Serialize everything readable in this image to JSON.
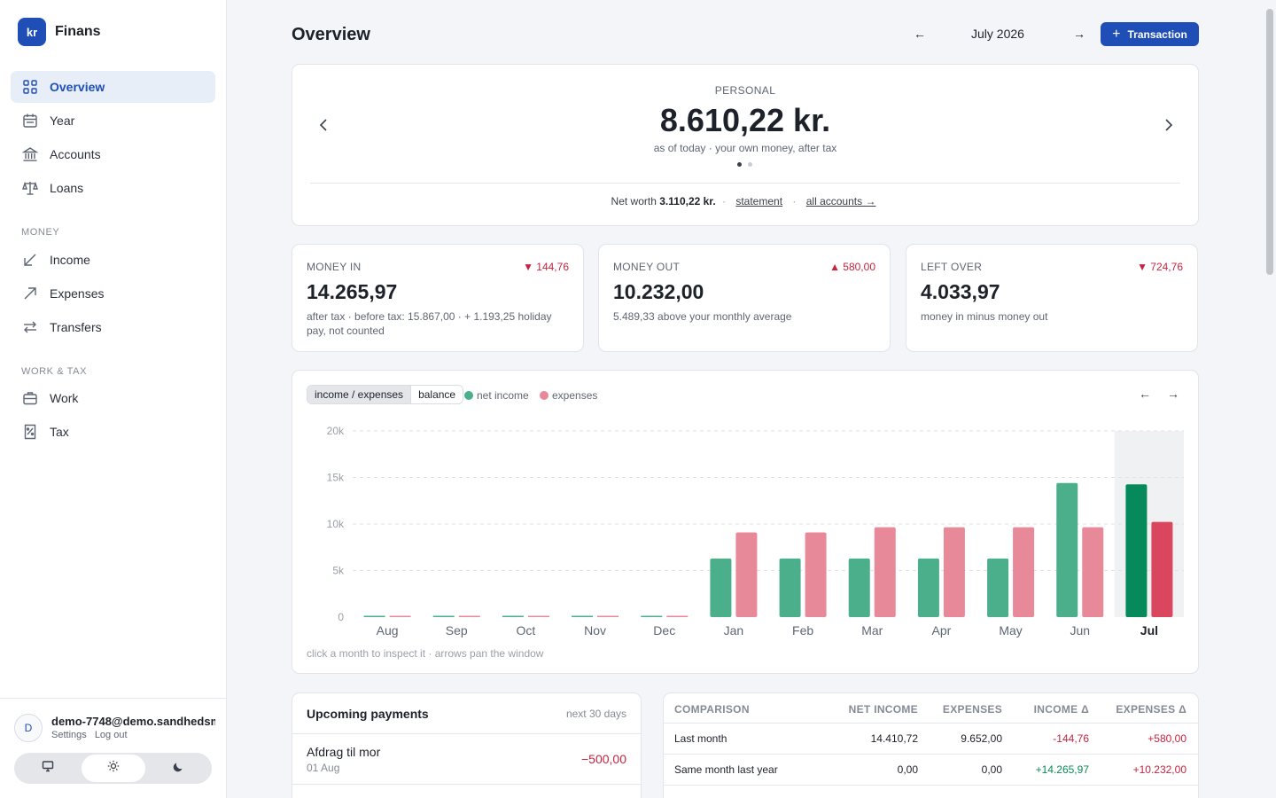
{
  "app": {
    "logo": "kr",
    "name": "Finans"
  },
  "sidebar": {
    "nav": [
      {
        "label": "Overview",
        "icon": "grid-icon"
      },
      {
        "label": "Year",
        "icon": "calendar-icon"
      },
      {
        "label": "Accounts",
        "icon": "bank-icon"
      },
      {
        "label": "Loans",
        "icon": "scale-icon"
      }
    ],
    "section_money": "MONEY",
    "money": [
      {
        "label": "Income",
        "icon": "arrow-down-left-icon"
      },
      {
        "label": "Expenses",
        "icon": "arrow-up-right-icon"
      },
      {
        "label": "Transfers",
        "icon": "swap-icon"
      }
    ],
    "section_work": "WORK & TAX",
    "work": [
      {
        "label": "Work",
        "icon": "briefcase-icon"
      },
      {
        "label": "Tax",
        "icon": "receipt-icon"
      }
    ],
    "user": {
      "initial": "D",
      "email": "demo-7748@demo.sandhedsm...",
      "settings": "Settings",
      "logout": "Log out"
    },
    "theme": {
      "selected": "light"
    }
  },
  "header": {
    "title": "Overview",
    "prev": "←",
    "month": "July 2026",
    "next": "→",
    "add_label": "Transaction"
  },
  "hero": {
    "label": "PERSONAL",
    "value": "8.610,22 kr.",
    "sub": "as of today · your own money, after tax",
    "net_worth_label": "Net worth",
    "net_worth": "3.110,22 kr.",
    "sep": "·",
    "statement": "statement",
    "all_accounts": "all accounts →"
  },
  "stats": [
    {
      "label": "MONEY IN",
      "delta": "▼ 144,76",
      "value": "14.265,97",
      "note": "after tax · before tax: 15.867,00 · + 1.193,25 holiday pay, not counted"
    },
    {
      "label": "MONEY OUT",
      "delta": "▲ 580,00",
      "value": "10.232,00",
      "note": "5.489,33 above your monthly average"
    },
    {
      "label": "LEFT OVER",
      "delta": "▼ 724,76",
      "value": "4.033,97",
      "note": "money in minus money out"
    }
  ],
  "chart_panel": {
    "tabs": [
      "income / expenses",
      "balance"
    ],
    "hint": "click a month to inspect it · arrows pan the window",
    "prev": "←",
    "next": "→"
  },
  "chart_data": {
    "type": "bar",
    "categories": [
      "Aug",
      "Sep",
      "Oct",
      "Nov",
      "Dec",
      "Jan",
      "Feb",
      "Mar",
      "Apr",
      "May",
      "Jun",
      "Jul"
    ],
    "series": [
      {
        "name": "net income",
        "color": "#4caf8c",
        "values": [
          0,
          0,
          0,
          0,
          0,
          6300,
          6300,
          6300,
          6300,
          6300,
          14400,
          14266
        ]
      },
      {
        "name": "expenses",
        "color": "#e8899a",
        "values": [
          0,
          0,
          0,
          0,
          0,
          9100,
          9100,
          9650,
          9650,
          9650,
          9650,
          10232
        ]
      }
    ],
    "highlight": "Jul",
    "highlight_colors": [
      "#078a5b",
      "#d9465d"
    ],
    "ylim": [
      0,
      20000
    ],
    "yticks": [
      "0",
      "5k",
      "10k",
      "15k",
      "20k"
    ],
    "grid": true,
    "legend": "top-left"
  },
  "upcoming": {
    "title": "Upcoming payments",
    "meta": "next 30 days",
    "items": [
      {
        "name": "Afdrag til mor",
        "date": "01 Aug",
        "amount": "−500,00"
      }
    ]
  },
  "comparison": {
    "headers": [
      "COMPARISON",
      "NET INCOME",
      "EXPENSES",
      "INCOME Δ",
      "EXPENSES Δ"
    ],
    "rows": [
      [
        "Last month",
        "14.410,72",
        "9.652,00",
        "-144,76",
        "+580,00"
      ],
      [
        "Same month last year",
        "0,00",
        "0,00",
        "+14.265,97",
        "+10.232,00"
      ]
    ]
  }
}
